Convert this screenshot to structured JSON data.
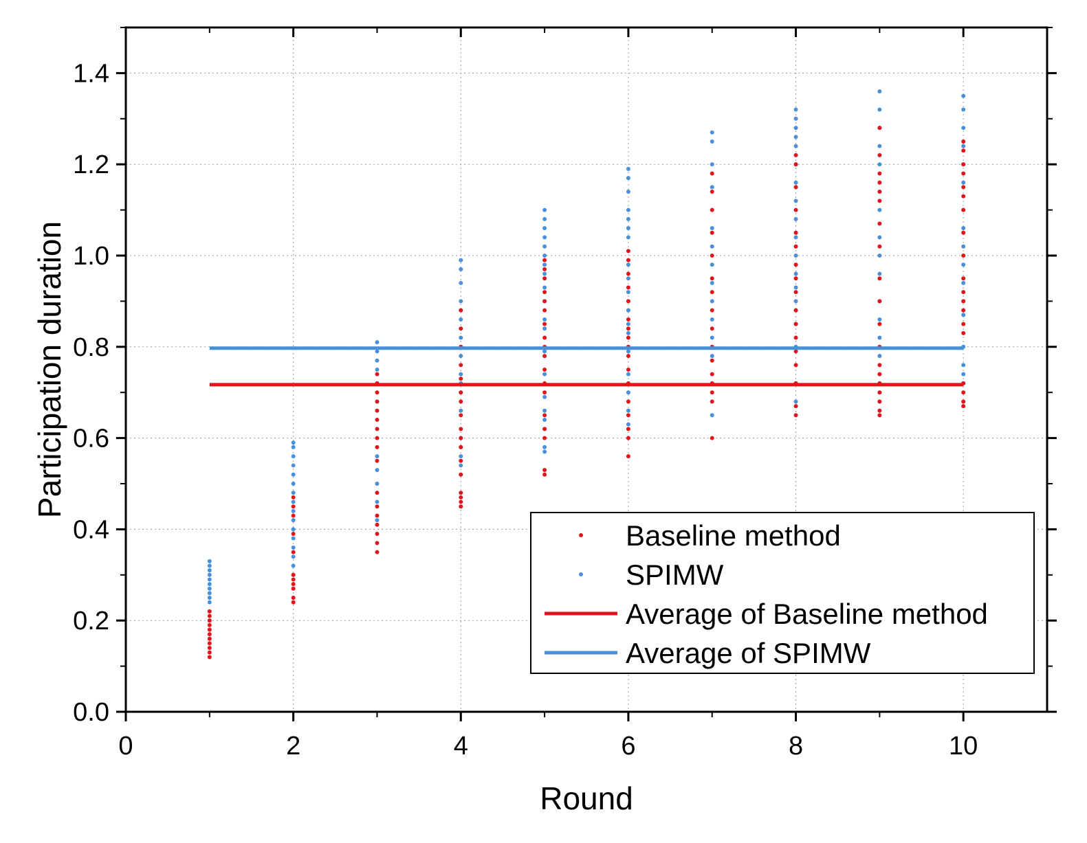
{
  "chart_data": {
    "type": "scatter",
    "title": "",
    "xlabel": "Round",
    "ylabel": "Participation duration",
    "xlim": [
      0,
      11
    ],
    "ylim": [
      0,
      1.5
    ],
    "xticks": [
      "0",
      "2",
      "4",
      "6",
      "8",
      "10"
    ],
    "yticks": [
      "0.0",
      "0.2",
      "0.4",
      "0.6",
      "0.8",
      "1.0",
      "1.2",
      "1.4"
    ],
    "grid": true,
    "legend_position": "bottom-right",
    "colors": {
      "baseline": "#e0161d",
      "spimw": "#4a90d9"
    },
    "series": [
      {
        "name": "Baseline method",
        "kind": "points",
        "color": "#e0161d",
        "points": [
          [
            1,
            0.12
          ],
          [
            1,
            0.13
          ],
          [
            1,
            0.14
          ],
          [
            1,
            0.15
          ],
          [
            1,
            0.16
          ],
          [
            1,
            0.17
          ],
          [
            1,
            0.18
          ],
          [
            1,
            0.19
          ],
          [
            1,
            0.2
          ],
          [
            1,
            0.21
          ],
          [
            1,
            0.22
          ],
          [
            2,
            0.24
          ],
          [
            2,
            0.25
          ],
          [
            2,
            0.27
          ],
          [
            2,
            0.28
          ],
          [
            2,
            0.29
          ],
          [
            2,
            0.3
          ],
          [
            2,
            0.35
          ],
          [
            2,
            0.39
          ],
          [
            2,
            0.43
          ],
          [
            2,
            0.45
          ],
          [
            2,
            0.47
          ],
          [
            3,
            0.35
          ],
          [
            3,
            0.37
          ],
          [
            3,
            0.39
          ],
          [
            3,
            0.41
          ],
          [
            3,
            0.43
          ],
          [
            3,
            0.45
          ],
          [
            3,
            0.48
          ],
          [
            3,
            0.55
          ],
          [
            3,
            0.58
          ],
          [
            3,
            0.6
          ],
          [
            3,
            0.62
          ],
          [
            3,
            0.64
          ],
          [
            3,
            0.66
          ],
          [
            3,
            0.68
          ],
          [
            3,
            0.7
          ],
          [
            3,
            0.72
          ],
          [
            3,
            0.74
          ],
          [
            4,
            0.45
          ],
          [
            4,
            0.46
          ],
          [
            4,
            0.47
          ],
          [
            4,
            0.48
          ],
          [
            4,
            0.52
          ],
          [
            4,
            0.55
          ],
          [
            4,
            0.58
          ],
          [
            4,
            0.6
          ],
          [
            4,
            0.62
          ],
          [
            4,
            0.65
          ],
          [
            4,
            0.68
          ],
          [
            4,
            0.7
          ],
          [
            4,
            0.73
          ],
          [
            4,
            0.76
          ],
          [
            4,
            0.8
          ],
          [
            4,
            0.84
          ],
          [
            4,
            0.88
          ],
          [
            5,
            0.52
          ],
          [
            5,
            0.53
          ],
          [
            5,
            0.6
          ],
          [
            5,
            0.62
          ],
          [
            5,
            0.65
          ],
          [
            5,
            0.7
          ],
          [
            5,
            0.72
          ],
          [
            5,
            0.75
          ],
          [
            5,
            0.78
          ],
          [
            5,
            0.8
          ],
          [
            5,
            0.82
          ],
          [
            5,
            0.85
          ],
          [
            5,
            0.88
          ],
          [
            5,
            0.9
          ],
          [
            5,
            0.92
          ],
          [
            5,
            0.95
          ],
          [
            5,
            0.97
          ],
          [
            5,
            0.99
          ],
          [
            6,
            0.56
          ],
          [
            6,
            0.6
          ],
          [
            6,
            0.62
          ],
          [
            6,
            0.65
          ],
          [
            6,
            0.68
          ],
          [
            6,
            0.72
          ],
          [
            6,
            0.75
          ],
          [
            6,
            0.78
          ],
          [
            6,
            0.8
          ],
          [
            6,
            0.82
          ],
          [
            6,
            0.84
          ],
          [
            6,
            0.86
          ],
          [
            6,
            0.9
          ],
          [
            6,
            0.93
          ],
          [
            6,
            0.96
          ],
          [
            6,
            0.99
          ],
          [
            6,
            1.01
          ],
          [
            7,
            0.6
          ],
          [
            7,
            0.68
          ],
          [
            7,
            0.7
          ],
          [
            7,
            0.72
          ],
          [
            7,
            0.74
          ],
          [
            7,
            0.77
          ],
          [
            7,
            0.8
          ],
          [
            7,
            0.84
          ],
          [
            7,
            0.88
          ],
          [
            7,
            0.92
          ],
          [
            7,
            0.95
          ],
          [
            7,
            1.0
          ],
          [
            7,
            1.05
          ],
          [
            7,
            1.1
          ],
          [
            7,
            1.14
          ],
          [
            7,
            1.18
          ],
          [
            8,
            0.65
          ],
          [
            8,
            0.67
          ],
          [
            8,
            0.72
          ],
          [
            8,
            0.76
          ],
          [
            8,
            0.79
          ],
          [
            8,
            0.82
          ],
          [
            8,
            0.85
          ],
          [
            8,
            0.88
          ],
          [
            8,
            0.92
          ],
          [
            8,
            0.95
          ],
          [
            8,
            0.98
          ],
          [
            8,
            1.02
          ],
          [
            8,
            1.05
          ],
          [
            8,
            1.1
          ],
          [
            8,
            1.15
          ],
          [
            8,
            1.2
          ],
          [
            8,
            1.22
          ],
          [
            9,
            0.65
          ],
          [
            9,
            0.66
          ],
          [
            9,
            0.68
          ],
          [
            9,
            0.7
          ],
          [
            9,
            0.72
          ],
          [
            9,
            0.74
          ],
          [
            9,
            0.76
          ],
          [
            9,
            0.8
          ],
          [
            9,
            0.85
          ],
          [
            9,
            0.9
          ],
          [
            9,
            0.95
          ],
          [
            9,
            1.02
          ],
          [
            9,
            1.07
          ],
          [
            9,
            1.12
          ],
          [
            9,
            1.14
          ],
          [
            9,
            1.16
          ],
          [
            9,
            1.18
          ],
          [
            9,
            1.22
          ],
          [
            9,
            1.28
          ],
          [
            10,
            0.67
          ],
          [
            10,
            0.68
          ],
          [
            10,
            0.7
          ],
          [
            10,
            0.72
          ],
          [
            10,
            0.83
          ],
          [
            10,
            0.85
          ],
          [
            10,
            0.88
          ],
          [
            10,
            0.9
          ],
          [
            10,
            0.92
          ],
          [
            10,
            0.95
          ],
          [
            10,
            1.0
          ],
          [
            10,
            1.05
          ],
          [
            10,
            1.1
          ],
          [
            10,
            1.13
          ],
          [
            10,
            1.15
          ],
          [
            10,
            1.18
          ],
          [
            10,
            1.2
          ],
          [
            10,
            1.23
          ],
          [
            10,
            1.25
          ]
        ]
      },
      {
        "name": "SPIMW",
        "kind": "points",
        "color": "#4a90d9",
        "points": [
          [
            1,
            0.16
          ],
          [
            1,
            0.18
          ],
          [
            1,
            0.2
          ],
          [
            1,
            0.22
          ],
          [
            1,
            0.24
          ],
          [
            1,
            0.25
          ],
          [
            1,
            0.26
          ],
          [
            1,
            0.27
          ],
          [
            1,
            0.28
          ],
          [
            1,
            0.29
          ],
          [
            1,
            0.3
          ],
          [
            1,
            0.31
          ],
          [
            1,
            0.32
          ],
          [
            1,
            0.33
          ],
          [
            2,
            0.3
          ],
          [
            2,
            0.32
          ],
          [
            2,
            0.34
          ],
          [
            2,
            0.36
          ],
          [
            2,
            0.38
          ],
          [
            2,
            0.4
          ],
          [
            2,
            0.42
          ],
          [
            2,
            0.44
          ],
          [
            2,
            0.46
          ],
          [
            2,
            0.48
          ],
          [
            2,
            0.5
          ],
          [
            2,
            0.52
          ],
          [
            2,
            0.54
          ],
          [
            2,
            0.56
          ],
          [
            2,
            0.58
          ],
          [
            2,
            0.59
          ],
          [
            3,
            0.42
          ],
          [
            3,
            0.46
          ],
          [
            3,
            0.5
          ],
          [
            3,
            0.53
          ],
          [
            3,
            0.56
          ],
          [
            3,
            0.62
          ],
          [
            3,
            0.68
          ],
          [
            3,
            0.72
          ],
          [
            3,
            0.75
          ],
          [
            3,
            0.77
          ],
          [
            3,
            0.79
          ],
          [
            3,
            0.81
          ],
          [
            4,
            0.52
          ],
          [
            4,
            0.54
          ],
          [
            4,
            0.56
          ],
          [
            4,
            0.58
          ],
          [
            4,
            0.6
          ],
          [
            4,
            0.66
          ],
          [
            4,
            0.7
          ],
          [
            4,
            0.72
          ],
          [
            4,
            0.74
          ],
          [
            4,
            0.78
          ],
          [
            4,
            0.82
          ],
          [
            4,
            0.86
          ],
          [
            4,
            0.88
          ],
          [
            4,
            0.9
          ],
          [
            4,
            0.94
          ],
          [
            4,
            0.97
          ],
          [
            4,
            0.99
          ],
          [
            5,
            0.57
          ],
          [
            5,
            0.58
          ],
          [
            5,
            0.62
          ],
          [
            5,
            0.64
          ],
          [
            5,
            0.66
          ],
          [
            5,
            0.69
          ],
          [
            5,
            0.74
          ],
          [
            5,
            0.79
          ],
          [
            5,
            0.84
          ],
          [
            5,
            0.86
          ],
          [
            5,
            0.9
          ],
          [
            5,
            0.93
          ],
          [
            5,
            0.96
          ],
          [
            5,
            0.98
          ],
          [
            5,
            1.0
          ],
          [
            5,
            1.02
          ],
          [
            5,
            1.04
          ],
          [
            5,
            1.06
          ],
          [
            5,
            1.08
          ],
          [
            5,
            1.1
          ],
          [
            6,
            0.63
          ],
          [
            6,
            0.66
          ],
          [
            6,
            0.7
          ],
          [
            6,
            0.74
          ],
          [
            6,
            0.79
          ],
          [
            6,
            0.83
          ],
          [
            6,
            0.85
          ],
          [
            6,
            0.88
          ],
          [
            6,
            0.9
          ],
          [
            6,
            0.92
          ],
          [
            6,
            0.95
          ],
          [
            6,
            0.98
          ],
          [
            6,
            1.04
          ],
          [
            6,
            1.06
          ],
          [
            6,
            1.08
          ],
          [
            6,
            1.1
          ],
          [
            6,
            1.14
          ],
          [
            6,
            1.17
          ],
          [
            6,
            1.19
          ],
          [
            7,
            0.65
          ],
          [
            7,
            0.72
          ],
          [
            7,
            0.78
          ],
          [
            7,
            0.82
          ],
          [
            7,
            0.86
          ],
          [
            7,
            0.9
          ],
          [
            7,
            0.94
          ],
          [
            7,
            0.98
          ],
          [
            7,
            1.02
          ],
          [
            7,
            1.06
          ],
          [
            7,
            1.1
          ],
          [
            7,
            1.15
          ],
          [
            7,
            1.2
          ],
          [
            7,
            1.25
          ],
          [
            7,
            1.27
          ],
          [
            8,
            0.68
          ],
          [
            8,
            0.72
          ],
          [
            8,
            0.8
          ],
          [
            8,
            0.85
          ],
          [
            8,
            0.88
          ],
          [
            8,
            0.9
          ],
          [
            8,
            0.93
          ],
          [
            8,
            0.96
          ],
          [
            8,
            1.0
          ],
          [
            8,
            1.04
          ],
          [
            8,
            1.08
          ],
          [
            8,
            1.12
          ],
          [
            8,
            1.16
          ],
          [
            8,
            1.2
          ],
          [
            8,
            1.24
          ],
          [
            8,
            1.26
          ],
          [
            8,
            1.28
          ],
          [
            8,
            1.3
          ],
          [
            8,
            1.32
          ],
          [
            9,
            0.68
          ],
          [
            9,
            0.7
          ],
          [
            9,
            0.74
          ],
          [
            9,
            0.78
          ],
          [
            9,
            0.82
          ],
          [
            9,
            0.86
          ],
          [
            9,
            0.9
          ],
          [
            9,
            0.96
          ],
          [
            9,
            1.0
          ],
          [
            9,
            1.04
          ],
          [
            9,
            1.1
          ],
          [
            9,
            1.14
          ],
          [
            9,
            1.2
          ],
          [
            9,
            1.24
          ],
          [
            9,
            1.28
          ],
          [
            9,
            1.32
          ],
          [
            9,
            1.36
          ],
          [
            10,
            0.72
          ],
          [
            10,
            0.74
          ],
          [
            10,
            0.76
          ],
          [
            10,
            0.8
          ],
          [
            10,
            0.87
          ],
          [
            10,
            0.9
          ],
          [
            10,
            0.94
          ],
          [
            10,
            0.98
          ],
          [
            10,
            1.02
          ],
          [
            10,
            1.06
          ],
          [
            10,
            1.1
          ],
          [
            10,
            1.16
          ],
          [
            10,
            1.2
          ],
          [
            10,
            1.24
          ],
          [
            10,
            1.28
          ],
          [
            10,
            1.32
          ],
          [
            10,
            1.35
          ]
        ]
      },
      {
        "name": "Average of Baseline method",
        "kind": "line",
        "color": "#e0161d",
        "x": [
          1,
          10
        ],
        "y": [
          0.717,
          0.717
        ]
      },
      {
        "name": "Average of SPIMW",
        "kind": "line",
        "color": "#4a90d9",
        "x": [
          1,
          10
        ],
        "y": [
          0.797,
          0.797
        ]
      }
    ]
  }
}
